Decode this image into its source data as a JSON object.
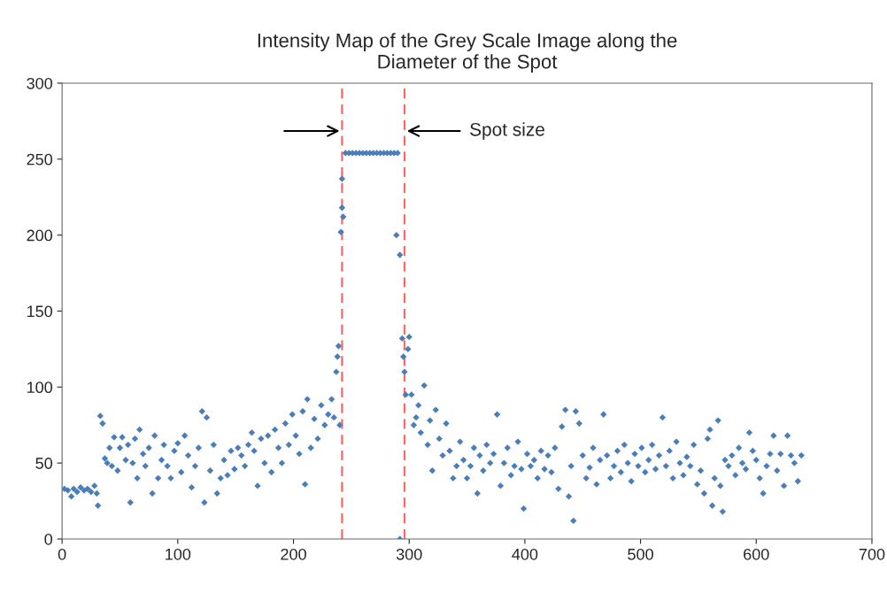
{
  "chart_data": {
    "type": "scatter",
    "title": "Intensity Map of the Grey Scale Image along the\nDiameter of the Spot",
    "series": [
      {
        "color": "#4a7ebb",
        "x": [
          2,
          5,
          8,
          10,
          13,
          16,
          19,
          22,
          25,
          28,
          30,
          31,
          33,
          35,
          37,
          39,
          41,
          43,
          45,
          48,
          50,
          52,
          55,
          57,
          59,
          61,
          63,
          65,
          67,
          70,
          72,
          75,
          78,
          80,
          83,
          86,
          88,
          91,
          94,
          97,
          100,
          103,
          106,
          109,
          112,
          115,
          118,
          121,
          123,
          125,
          128,
          131,
          134,
          137,
          140,
          143,
          146,
          149,
          152,
          155,
          158,
          161,
          164,
          166,
          169,
          172,
          175,
          178,
          181,
          184,
          187,
          190,
          193,
          196,
          199,
          202,
          205,
          208,
          210,
          212,
          215,
          218,
          221,
          224,
          227,
          230,
          233,
          235,
          237,
          238,
          239,
          240,
          241,
          242,
          243,
          242,
          245,
          248,
          251,
          254,
          257,
          260,
          263,
          266,
          269,
          272,
          275,
          278,
          281,
          284,
          287,
          290,
          289,
          292,
          292,
          294,
          295,
          296,
          297,
          299,
          300,
          302,
          304,
          306,
          308,
          310,
          313,
          316,
          318,
          320,
          323,
          326,
          329,
          332,
          335,
          338,
          341,
          344,
          347,
          350,
          353,
          356,
          359,
          361,
          364,
          367,
          370,
          373,
          376,
          379,
          382,
          385,
          388,
          391,
          394,
          397,
          399,
          402,
          405,
          408,
          411,
          414,
          417,
          420,
          423,
          426,
          429,
          432,
          435,
          438,
          440,
          442,
          444,
          447,
          450,
          453,
          456,
          459,
          462,
          465,
          468,
          471,
          474,
          477,
          480,
          483,
          486,
          489,
          492,
          495,
          498,
          501,
          504,
          507,
          510,
          513,
          516,
          519,
          522,
          525,
          528,
          531,
          534,
          537,
          540,
          543,
          546,
          549,
          552,
          555,
          558,
          560,
          562,
          564,
          567,
          569,
          571,
          573,
          576,
          579,
          582,
          585,
          588,
          591,
          594,
          597,
          600,
          603,
          606,
          609,
          612,
          615,
          618,
          621,
          624,
          627,
          630,
          633,
          636,
          639
        ],
        "values": [
          33,
          32,
          28,
          33,
          31,
          34,
          32,
          33,
          31,
          35,
          30,
          22,
          81,
          76,
          53,
          50,
          60,
          48,
          67,
          45,
          60,
          67,
          52,
          62,
          24,
          50,
          66,
          40,
          72,
          56,
          48,
          60,
          30,
          68,
          40,
          52,
          62,
          48,
          40,
          58,
          63,
          44,
          68,
          55,
          34,
          48,
          60,
          84,
          24,
          80,
          45,
          62,
          30,
          40,
          52,
          42,
          58,
          46,
          60,
          55,
          48,
          62,
          70,
          58,
          35,
          66,
          50,
          68,
          44,
          72,
          60,
          50,
          76,
          62,
          82,
          68,
          56,
          84,
          36,
          92,
          60,
          79,
          66,
          88,
          75,
          82,
          92,
          80,
          110,
          120,
          127,
          75,
          202,
          218,
          212,
          237,
          254,
          254,
          254,
          254,
          254,
          254,
          254,
          254,
          254,
          254,
          254,
          254,
          254,
          254,
          254,
          254,
          200,
          187,
          0,
          132,
          120,
          110,
          95,
          125,
          133,
          95,
          75,
          80,
          88,
          70,
          101,
          62,
          78,
          45,
          85,
          66,
          55,
          76,
          58,
          40,
          48,
          64,
          52,
          40,
          48,
          60,
          30,
          55,
          45,
          62,
          50,
          56,
          82,
          35,
          50,
          60,
          42,
          48,
          64,
          46,
          20,
          56,
          48,
          52,
          40,
          58,
          46,
          55,
          44,
          60,
          33,
          74,
          85,
          28,
          48,
          12,
          84,
          76,
          55,
          40,
          47,
          60,
          36,
          52,
          82,
          55,
          40,
          48,
          58,
          44,
          62,
          50,
          38,
          56,
          48,
          60,
          44,
          52,
          62,
          46,
          55,
          80,
          48,
          58,
          40,
          64,
          50,
          42,
          54,
          48,
          62,
          36,
          45,
          30,
          66,
          72,
          22,
          40,
          78,
          35,
          18,
          52,
          48,
          55,
          42,
          60,
          50,
          46,
          70,
          58,
          52,
          40,
          30,
          48,
          56,
          68,
          45,
          56,
          35,
          68,
          55,
          50,
          38,
          55
        ]
      }
    ],
    "marker": "diamond",
    "xlim": [
      0,
      700
    ],
    "xticks": [
      0,
      100,
      200,
      300,
      400,
      500,
      600,
      700
    ],
    "ylim": [
      0,
      300
    ],
    "yticks": [
      0,
      50,
      100,
      150,
      200,
      250,
      300
    ],
    "grid": false,
    "ref_lines": [
      {
        "axis": "x",
        "value": 242,
        "color": "#ff6666",
        "line_style": "dashed"
      },
      {
        "axis": "x",
        "value": 296,
        "color": "#ff6666",
        "line_style": "dashed"
      }
    ],
    "annotations": [
      "Spot size"
    ]
  }
}
